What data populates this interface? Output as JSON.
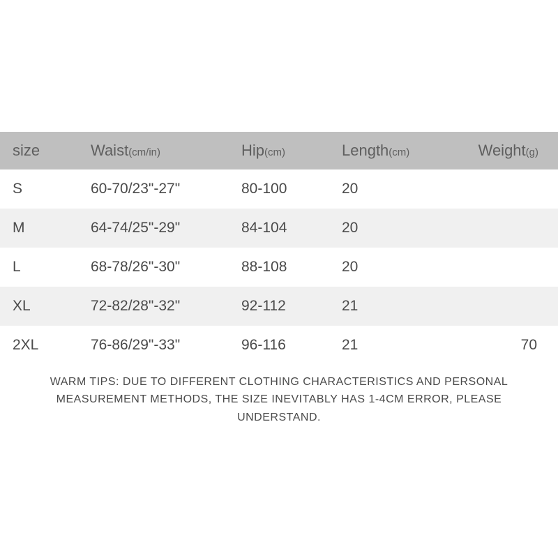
{
  "table": {
    "header_bg": "#bfbfbf",
    "row_odd_bg": "#ffffff",
    "row_even_bg": "#f0f0f0",
    "text_color": "#4a4a4a",
    "header_text_color": "#5f5f5f",
    "header_fontsize": 22,
    "cell_fontsize": 21,
    "unit_fontsize": 15,
    "columns": [
      {
        "label": "size",
        "unit": ""
      },
      {
        "label": "Waist",
        "unit": "(cm/in)"
      },
      {
        "label": "Hip",
        "unit": "(cm)"
      },
      {
        "label": "Length",
        "unit": "(cm)"
      },
      {
        "label": "Weight",
        "unit": "(g)"
      }
    ],
    "rows": [
      {
        "size": "S",
        "waist": "60-70/23\"-27\"",
        "hip": "80-100",
        "length": "20",
        "weight": ""
      },
      {
        "size": "M",
        "waist": "64-74/25\"-29\"",
        "hip": "84-104",
        "length": "20",
        "weight": ""
      },
      {
        "size": "L",
        "waist": "68-78/26\"-30\"",
        "hip": "88-108",
        "length": "20",
        "weight": ""
      },
      {
        "size": "XL",
        "waist": "72-82/28\"-32\"",
        "hip": "92-112",
        "length": "21",
        "weight": ""
      },
      {
        "size": "2XL",
        "waist": "76-86/29\"-33\"",
        "hip": "96-116",
        "length": "21",
        "weight": "70"
      }
    ]
  },
  "tips": {
    "line1": "WARM TIPS: DUE TO DIFFERENT CLOTHING CHARACTERISTICS AND PERSONAL",
    "line2": "MEASUREMENT METHODS, THE SIZE INEVITABLY HAS 1-4CM ERROR, PLEASE UNDERSTAND."
  }
}
